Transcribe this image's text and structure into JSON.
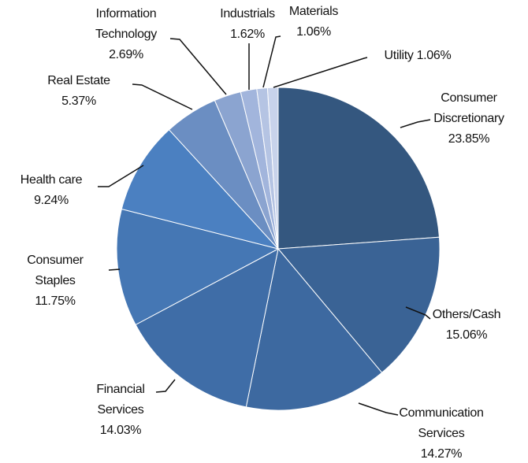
{
  "chart_data": {
    "type": "pie",
    "categories": [
      "Consumer Discretionary",
      "Others/Cash",
      "Communication Services",
      "Financial Services",
      "Consumer Staples",
      "Health care",
      "Real Estate",
      "Information Technology",
      "Industrials",
      "Materials",
      "Utility"
    ],
    "values": [
      23.85,
      15.06,
      14.27,
      14.03,
      11.75,
      9.24,
      5.37,
      2.69,
      1.62,
      1.06,
      1.06
    ],
    "value_labels": [
      "23.85%",
      "15.06%",
      "14.27%",
      "14.03%",
      "11.75%",
      "9.24%",
      "5.37%",
      "2.69%",
      "1.62%",
      "1.06%",
      "1.06%"
    ],
    "colors": [
      "#34577f",
      "#3a6395",
      "#3d69a0",
      "#3f6da7",
      "#4577b4",
      "#4b80c1",
      "#6b8ec2",
      "#8ba4d0",
      "#a2b5dc",
      "#b5c4e3",
      "#c8d3eb"
    ]
  }
}
